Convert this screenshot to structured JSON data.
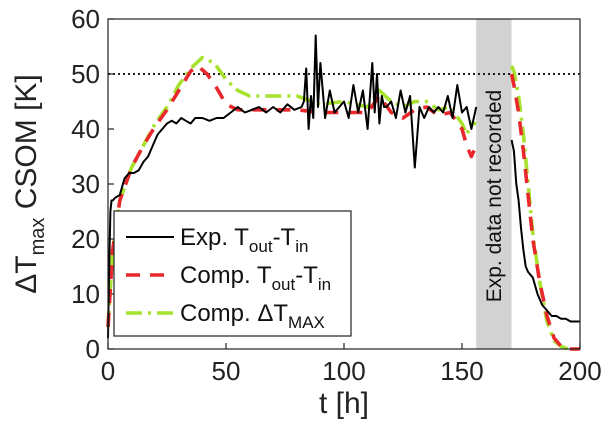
{
  "chart_data": {
    "type": "line",
    "xlabel": "t [h]",
    "ylabel": "ΔT",
    "ylabel_sub": "max",
    "ylabel_tail": " CSOM [K]",
    "xlim": [
      0,
      200
    ],
    "ylim": [
      0,
      60
    ],
    "xticks": [
      "0",
      "50",
      "100",
      "150",
      "200"
    ],
    "yticks": [
      "0",
      "10",
      "20",
      "30",
      "40",
      "50",
      "60"
    ],
    "grid": false,
    "legend_position": "bottom-left",
    "reference_line": {
      "y": 50,
      "style": "dotted"
    },
    "shaded_region": {
      "x0": 156,
      "x1": 171,
      "label": "Exp. data not recorded"
    },
    "series": [
      {
        "legend_main": "Exp. T",
        "legend_sub1": "out",
        "legend_mid": "-T",
        "legend_sub2": "in",
        "color": "#000000",
        "dash": "solid",
        "x": [
          0,
          0.5,
          1,
          1.5,
          2,
          3,
          5,
          7,
          9,
          11,
          13,
          15,
          17,
          19,
          21,
          23,
          25,
          27,
          29,
          31,
          33,
          35,
          37,
          40,
          43,
          46,
          49,
          52,
          55,
          58,
          61,
          64,
          67,
          70,
          73,
          76,
          79,
          82,
          83,
          84,
          85,
          86,
          87,
          88,
          89,
          90,
          92,
          94,
          96,
          98,
          100,
          102,
          104,
          106,
          108,
          110,
          112,
          113,
          114,
          115,
          116,
          117,
          118,
          120,
          122,
          124,
          126,
          128,
          130,
          132,
          134,
          136,
          138,
          140,
          142,
          144,
          146,
          148,
          150,
          152,
          154,
          156,
          171,
          172,
          173,
          174,
          175,
          176,
          177,
          178,
          180,
          182,
          184,
          186,
          188,
          190,
          192,
          194,
          196,
          198,
          200
        ],
        "y": [
          2,
          15,
          25,
          27,
          27,
          27.5,
          28,
          31,
          32,
          32,
          32.5,
          34,
          35,
          37,
          39,
          40,
          41,
          41.5,
          41,
          42,
          41.5,
          41,
          42,
          42,
          41.5,
          42,
          42,
          43,
          44,
          43,
          43.5,
          44,
          43,
          44,
          43,
          44.5,
          43.5,
          44,
          45,
          51,
          40,
          46,
          42,
          57,
          44,
          52,
          42,
          47,
          43,
          44,
          45,
          42,
          48,
          43,
          47,
          40,
          52,
          43,
          50,
          41,
          46,
          44,
          44,
          45,
          42,
          47,
          43,
          46,
          33,
          44,
          42,
          44,
          43,
          44,
          43,
          46,
          42,
          48,
          43,
          44,
          40,
          44,
          38,
          36,
          30,
          27,
          22,
          18,
          15,
          14,
          13,
          10,
          8,
          7,
          6,
          6,
          5.5,
          5.5,
          5,
          5,
          5
        ]
      },
      {
        "legend_main": "Comp. T",
        "legend_sub1": "out",
        "legend_mid": "-T",
        "legend_sub2": "in",
        "color": "#e8282c",
        "dash": "14,10",
        "x": [
          0,
          2,
          5,
          10,
          15,
          20,
          25,
          30,
          35,
          38,
          42,
          46,
          50,
          55,
          60,
          70,
          80,
          90,
          100,
          110,
          115,
          120,
          125,
          130,
          135,
          140,
          145,
          150,
          152,
          154,
          156,
          171,
          172,
          174,
          176,
          178,
          180,
          183,
          186,
          189,
          192,
          195,
          200
        ],
        "y": [
          4,
          18,
          27,
          33,
          37,
          40.5,
          43.5,
          47,
          50.5,
          51.5,
          50,
          47.5,
          44.5,
          43.5,
          43.5,
          43.5,
          43.5,
          43,
          43,
          43,
          46,
          43,
          42,
          43.5,
          44,
          42.5,
          43,
          40,
          37,
          35,
          37,
          50,
          48,
          43,
          36,
          28,
          20,
          12,
          6,
          2,
          0.5,
          0,
          0
        ]
      },
      {
        "legend_main": "Comp. ΔT",
        "legend_sub1": "MAX",
        "legend_mid": "",
        "legend_sub2": "",
        "color": "#a6e22e",
        "dash": "16,6,3,6",
        "x": [
          0,
          2,
          5,
          10,
          15,
          20,
          25,
          30,
          35,
          40,
          45,
          50,
          55,
          60,
          70,
          80,
          90,
          100,
          110,
          115,
          120,
          125,
          130,
          135,
          140,
          145,
          150,
          152,
          154,
          156,
          171,
          172,
          174,
          176,
          178,
          180,
          183,
          186,
          189,
          192,
          195,
          200
        ],
        "y": [
          4,
          18,
          27,
          33,
          37,
          41,
          44,
          48,
          51,
          53,
          52,
          49,
          47,
          46,
          46,
          46,
          44.5,
          45,
          44,
          47,
          45,
          44,
          45,
          45,
          43.5,
          44,
          41,
          39,
          41,
          41,
          51.5,
          50.5,
          46,
          39,
          30,
          21,
          12,
          5,
          1.5,
          0.5,
          0,
          0
        ]
      }
    ]
  }
}
